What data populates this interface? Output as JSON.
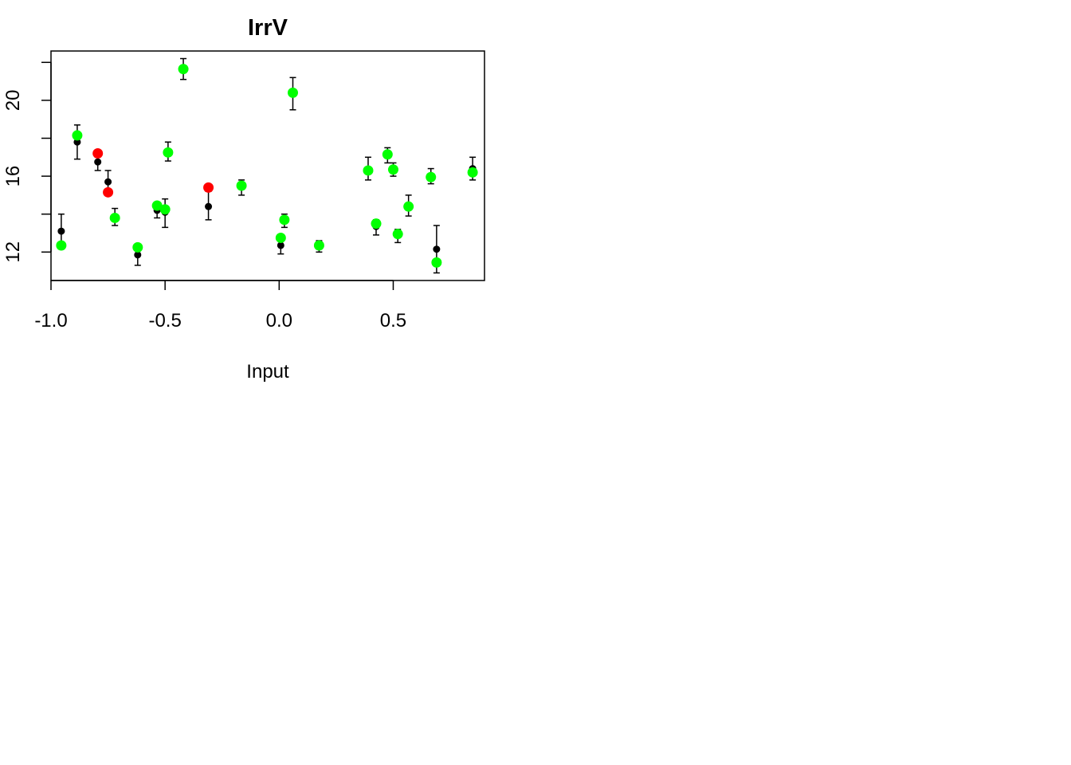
{
  "chart_data": {
    "type": "scatter",
    "title": "IrrV",
    "xlabel": "Input",
    "ylabel": "",
    "xlim": [
      -1.0,
      0.9
    ],
    "ylim": [
      10.5,
      22.6
    ],
    "xticks": [
      -1.0,
      -0.5,
      0.0,
      0.5
    ],
    "xtick_labels": [
      "-1.0",
      "-0.5",
      "0.0",
      "0.5"
    ],
    "yticks": [
      12,
      14,
      16,
      18,
      20,
      22
    ],
    "ytick_labels": [
      "12",
      "",
      "16",
      "",
      "20",
      ""
    ],
    "grid": false,
    "colors": {
      "observed": "#000000",
      "predicted": "#00ff00",
      "outlier": "#ff0000"
    },
    "observed": [
      {
        "x": -0.955,
        "y": 13.1,
        "lo": 12.3,
        "hi": 14.0
      },
      {
        "x": -0.885,
        "y": 17.8,
        "lo": 16.9,
        "hi": 18.7
      },
      {
        "x": -0.795,
        "y": 16.75,
        "lo": 16.3,
        "hi": 17.2
      },
      {
        "x": -0.75,
        "y": 15.7,
        "lo": 15.2,
        "hi": 16.3
      },
      {
        "x": -0.72,
        "y": 13.75,
        "lo": 13.4,
        "hi": 14.3
      },
      {
        "x": -0.62,
        "y": 11.85,
        "lo": 11.3,
        "hi": 12.4
      },
      {
        "x": -0.535,
        "y": 14.2,
        "lo": 13.8,
        "hi": 14.6
      },
      {
        "x": -0.5,
        "y": 14.1,
        "lo": 13.3,
        "hi": 14.8
      },
      {
        "x": -0.487,
        "y": 17.25,
        "lo": 16.8,
        "hi": 17.8
      },
      {
        "x": -0.42,
        "y": 21.65,
        "lo": 21.1,
        "hi": 22.2
      },
      {
        "x": -0.31,
        "y": 14.4,
        "lo": 13.7,
        "hi": 15.2
      },
      {
        "x": -0.165,
        "y": 15.45,
        "lo": 15.0,
        "hi": 15.8
      },
      {
        "x": 0.007,
        "y": 12.35,
        "lo": 11.9,
        "hi": 12.8
      },
      {
        "x": 0.023,
        "y": 13.65,
        "lo": 13.3,
        "hi": 14.0
      },
      {
        "x": 0.06,
        "y": 20.4,
        "lo": 19.5,
        "hi": 21.2
      },
      {
        "x": 0.175,
        "y": 12.3,
        "lo": 12.0,
        "hi": 12.6
      },
      {
        "x": 0.39,
        "y": 16.35,
        "lo": 15.8,
        "hi": 17.0
      },
      {
        "x": 0.425,
        "y": 13.35,
        "lo": 12.9,
        "hi": 13.7
      },
      {
        "x": 0.475,
        "y": 17.1,
        "lo": 16.7,
        "hi": 17.5
      },
      {
        "x": 0.5,
        "y": 16.3,
        "lo": 16.0,
        "hi": 16.7
      },
      {
        "x": 0.52,
        "y": 12.9,
        "lo": 12.5,
        "hi": 13.2
      },
      {
        "x": 0.567,
        "y": 14.4,
        "lo": 13.9,
        "hi": 15.0
      },
      {
        "x": 0.665,
        "y": 16.0,
        "lo": 15.6,
        "hi": 16.4
      },
      {
        "x": 0.69,
        "y": 12.15,
        "lo": 10.9,
        "hi": 13.4
      },
      {
        "x": 0.848,
        "y": 16.4,
        "lo": 15.8,
        "hi": 17.0
      }
    ],
    "predicted": [
      {
        "x": -0.955,
        "y": 12.35
      },
      {
        "x": -0.885,
        "y": 18.15
      },
      {
        "x": -0.72,
        "y": 13.8
      },
      {
        "x": -0.62,
        "y": 12.25
      },
      {
        "x": -0.535,
        "y": 14.45
      },
      {
        "x": -0.5,
        "y": 14.25
      },
      {
        "x": -0.487,
        "y": 17.25
      },
      {
        "x": -0.42,
        "y": 21.65
      },
      {
        "x": -0.165,
        "y": 15.5
      },
      {
        "x": 0.007,
        "y": 12.75
      },
      {
        "x": 0.023,
        "y": 13.7
      },
      {
        "x": 0.06,
        "y": 20.4
      },
      {
        "x": 0.175,
        "y": 12.35
      },
      {
        "x": 0.39,
        "y": 16.3
      },
      {
        "x": 0.425,
        "y": 13.5
      },
      {
        "x": 0.475,
        "y": 17.15
      },
      {
        "x": 0.5,
        "y": 16.35
      },
      {
        "x": 0.52,
        "y": 12.95
      },
      {
        "x": 0.567,
        "y": 14.4
      },
      {
        "x": 0.665,
        "y": 15.95
      },
      {
        "x": 0.69,
        "y": 11.45
      },
      {
        "x": 0.848,
        "y": 16.2
      }
    ],
    "outliers": [
      {
        "x": -0.795,
        "y": 17.2
      },
      {
        "x": -0.75,
        "y": 15.15
      },
      {
        "x": -0.31,
        "y": 15.4
      }
    ]
  }
}
